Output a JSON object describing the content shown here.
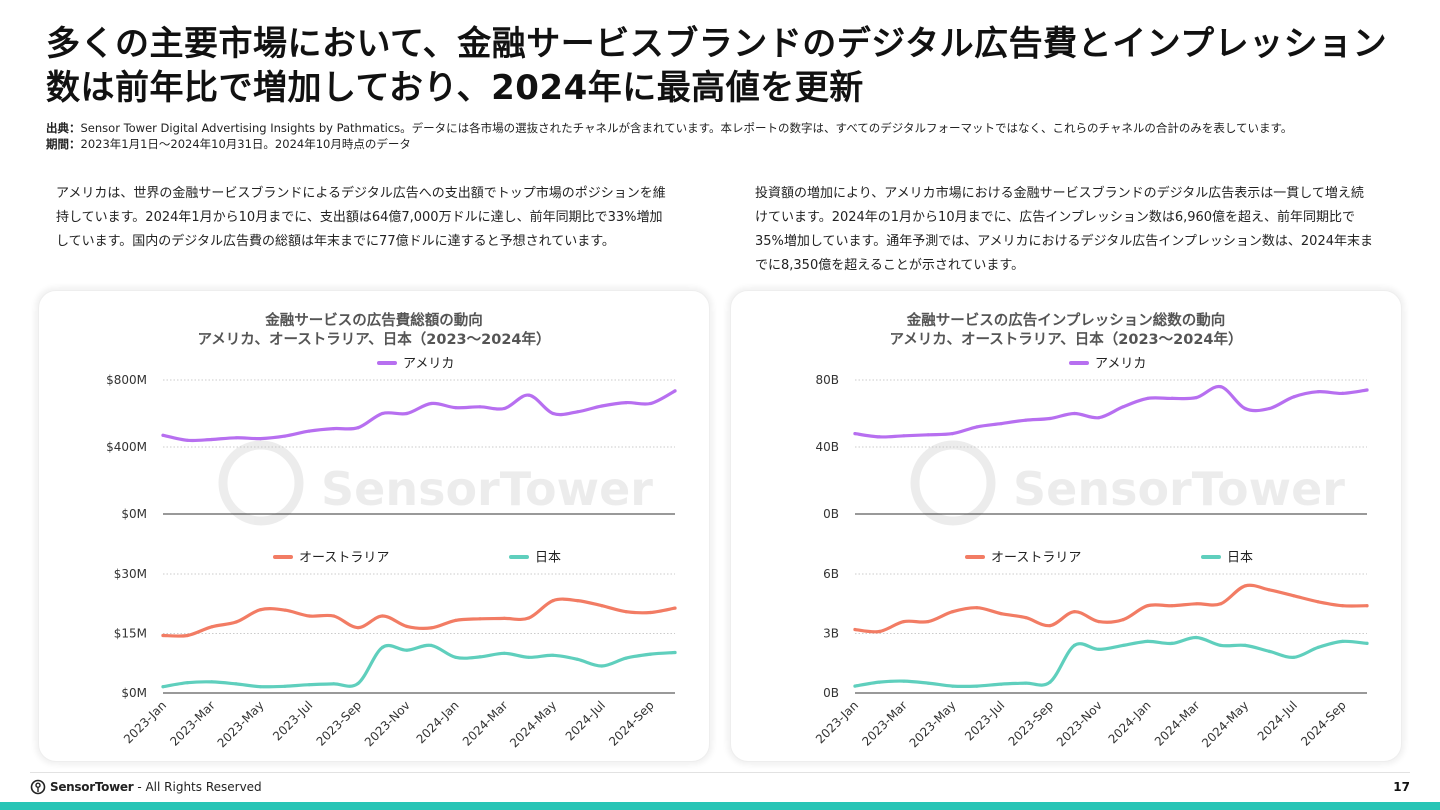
{
  "page": {
    "title": "多くの主要市場において、金融サービスブランドのデジタル広告費とインプレッション数は前年比で増加しており、2024年に最高値を更新",
    "source_label": "出典：",
    "source_text": "Sensor Tower Digital Advertising Insights by Pathmatics。データには各市場の選抜されたチャネルが含まれています。本レポートの数字は、すべてのデジタルフォーマットではなく、これらのチャネルの合計のみを表しています。",
    "period_label": "期間：",
    "period_text": "2023年1月1日〜2024年10月31日。2024年10月時点のデータ",
    "desc_left": "アメリカは、世界の金融サービスブランドによるデジタル広告への支出額でトップ市場のポジションを維持しています。2024年1月から10月までに、支出額は64億7,000万ドルに達し、前年同期比で33%増加しています。国内のデジタル広告費の総額は年末までに77億ドルに達すると予想されています。",
    "desc_right": "投資額の増加により、アメリカ市場における金融サービスブランドのデジタル広告表示は一貫して増え続けています。2024年の1月から10月までに、広告インプレッション数は6,960億を超え、前年同期比で35%増加しています。通年予測では、アメリカにおけるデジタル広告インプレッション数は、2024年末までに8,350億を超えることが示されています。",
    "footer_logo": "SensorTower",
    "footer_text": "- All Rights Reserved",
    "page_number": "17",
    "watermark": "SensorTower"
  },
  "colors": {
    "usa": "#b76ff0",
    "australia": "#f27c64",
    "japan": "#5fcfbd",
    "accent": "#27c5b6"
  },
  "chart_data": [
    {
      "type": "line",
      "title": "金融サービスの広告費総額の動向",
      "subtitle": "アメリカ、オーストラリア、日本（2023〜2024年）",
      "x": [
        "2023-Jan",
        "2023-Feb",
        "2023-Mar",
        "2023-Apr",
        "2023-May",
        "2023-Jun",
        "2023-Jul",
        "2023-Aug",
        "2023-Sep",
        "2023-Oct",
        "2023-Nov",
        "2023-Dec",
        "2024-Jan",
        "2024-Feb",
        "2024-Mar",
        "2024-Apr",
        "2024-May",
        "2024-Jun",
        "2024-Jul",
        "2024-Aug",
        "2024-Sep",
        "2024-Oct"
      ],
      "x_tick_labels": [
        "2023-Jan",
        "2023-Mar",
        "2023-May",
        "2023-Jul",
        "2023-Sep",
        "2023-Nov",
        "2024-Jan",
        "2024-Mar",
        "2024-May",
        "2024-Jul",
        "2024-Sep"
      ],
      "panels": [
        {
          "series": [
            {
              "name": "アメリカ",
              "color_key": "usa",
              "values": [
                470,
                440,
                445,
                455,
                450,
                465,
                495,
                510,
                515,
                600,
                600,
                660,
                635,
                640,
                630,
                710,
                600,
                610,
                645,
                665,
                660,
                735
              ]
            }
          ],
          "yticks": [
            "$0M",
            "$400M",
            "$800M"
          ],
          "ylim": [
            0,
            800
          ]
        },
        {
          "series": [
            {
              "name": "オーストラリア",
              "color_key": "australia",
              "values": [
                14.5,
                14.5,
                16.7,
                17.9,
                21.0,
                20.9,
                19.4,
                19.4,
                16.5,
                19.4,
                16.8,
                16.4,
                18.3,
                18.7,
                18.8,
                18.9,
                23.3,
                23.3,
                22.0,
                20.5,
                20.3,
                21.4
              ]
            },
            {
              "name": "日本",
              "color_key": "japan",
              "values": [
                1.6,
                2.6,
                2.8,
                2.3,
                1.6,
                1.7,
                2.1,
                2.3,
                2.4,
                11.5,
                10.8,
                12.0,
                9.0,
                9.1,
                10.0,
                9.0,
                9.5,
                8.5,
                6.8,
                8.8,
                9.8,
                10.2
              ]
            }
          ],
          "yticks": [
            "$0M",
            "$15M",
            "$30M"
          ],
          "ylim": [
            0,
            30
          ]
        }
      ]
    },
    {
      "type": "line",
      "title": "金融サービスの広告インプレッション総数の動向",
      "subtitle": "アメリカ、オーストラリア、日本（2023〜2024年）",
      "x": [
        "2023-Jan",
        "2023-Feb",
        "2023-Mar",
        "2023-Apr",
        "2023-May",
        "2023-Jun",
        "2023-Jul",
        "2023-Aug",
        "2023-Sep",
        "2023-Oct",
        "2023-Nov",
        "2023-Dec",
        "2024-Jan",
        "2024-Feb",
        "2024-Mar",
        "2024-Apr",
        "2024-May",
        "2024-Jun",
        "2024-Jul",
        "2024-Aug",
        "2024-Sep",
        "2024-Oct"
      ],
      "x_tick_labels": [
        "2023-Jan",
        "2023-Mar",
        "2023-May",
        "2023-Jul",
        "2023-Sep",
        "2023-Nov",
        "2024-Jan",
        "2024-Mar",
        "2024-May",
        "2024-Jul",
        "2024-Sep"
      ],
      "panels": [
        {
          "series": [
            {
              "name": "アメリカ",
              "color_key": "usa",
              "values": [
                48,
                46,
                46.7,
                47.3,
                48,
                52,
                54,
                56,
                57,
                60,
                57.5,
                64,
                69,
                69,
                69.5,
                76,
                63,
                63,
                70,
                73,
                72,
                74
              ]
            }
          ],
          "yticks": [
            "0B",
            "40B",
            "80B"
          ],
          "ylim": [
            0,
            80
          ]
        },
        {
          "series": [
            {
              "name": "オーストラリア",
              "color_key": "australia",
              "values": [
                3.2,
                3.1,
                3.6,
                3.6,
                4.1,
                4.3,
                4.0,
                3.8,
                3.4,
                4.1,
                3.6,
                3.7,
                4.4,
                4.4,
                4.5,
                4.5,
                5.4,
                5.2,
                4.9,
                4.6,
                4.4,
                4.4
              ]
            },
            {
              "name": "日本",
              "color_key": "japan",
              "values": [
                0.35,
                0.55,
                0.6,
                0.5,
                0.35,
                0.35,
                0.45,
                0.5,
                0.55,
                2.4,
                2.2,
                2.4,
                2.6,
                2.5,
                2.8,
                2.4,
                2.4,
                2.1,
                1.8,
                2.3,
                2.6,
                2.5
              ]
            }
          ],
          "yticks": [
            "0B",
            "3B",
            "6B"
          ],
          "ylim": [
            0,
            6
          ]
        }
      ]
    }
  ]
}
